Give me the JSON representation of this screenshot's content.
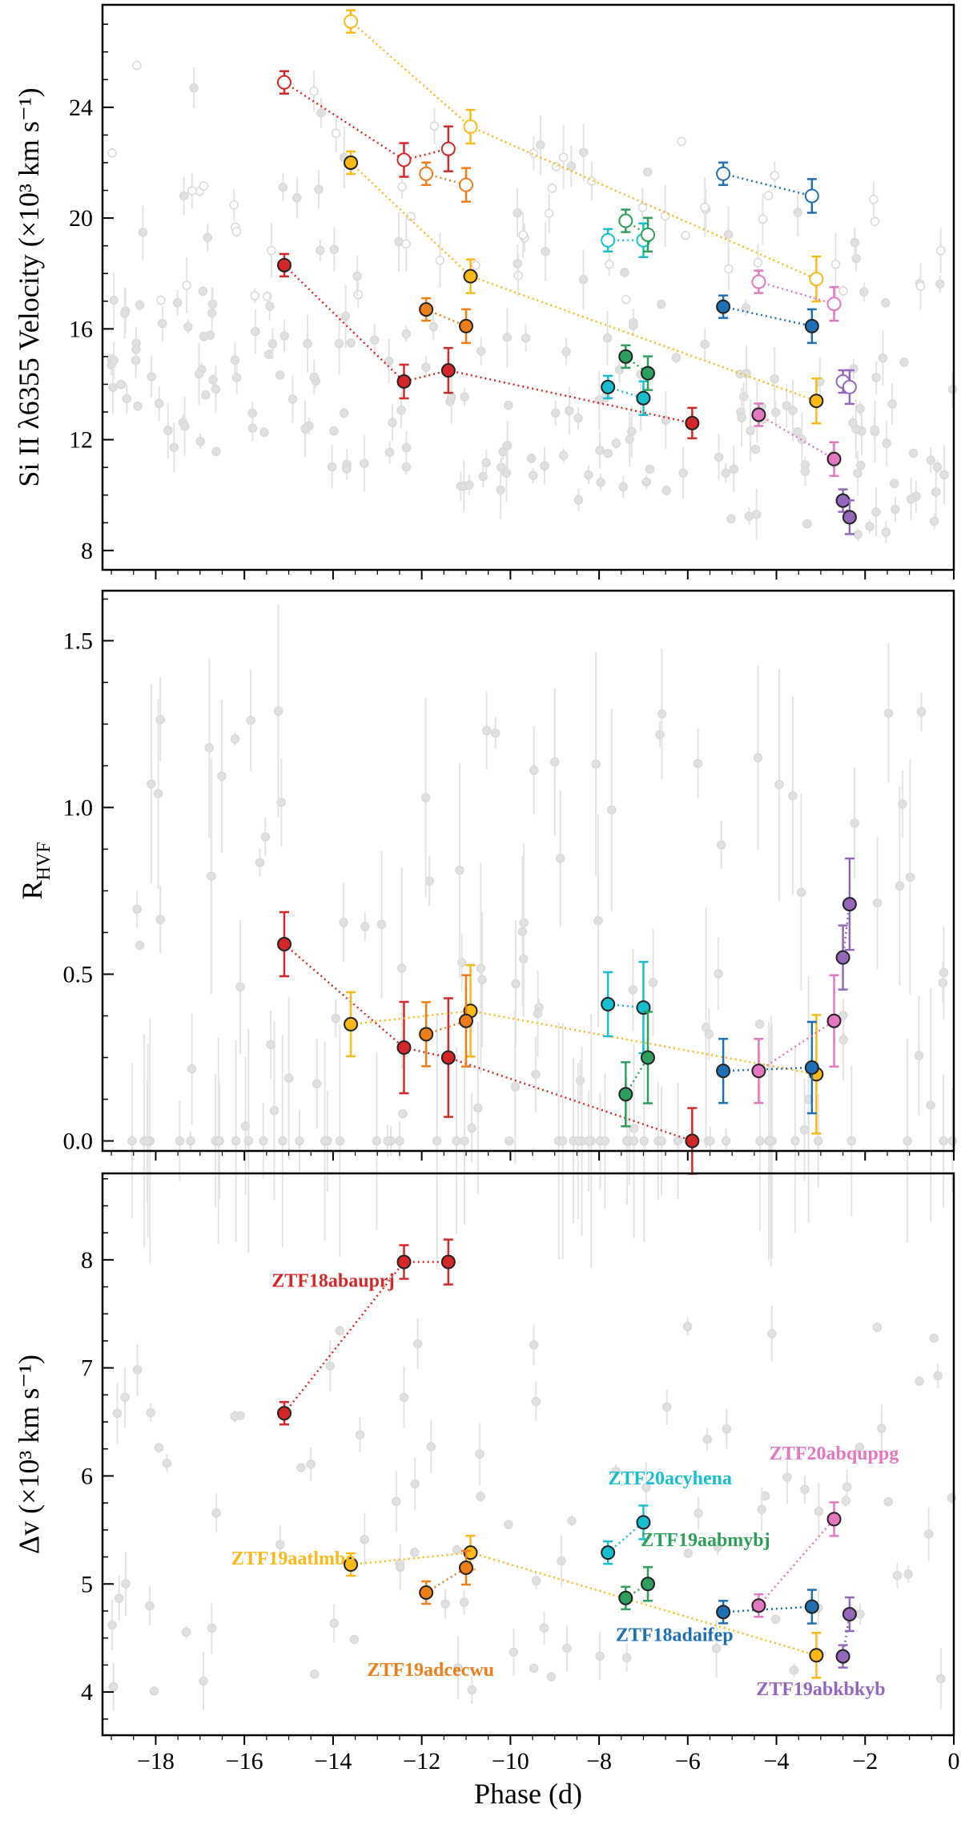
{
  "chart_data": [
    {
      "type": "scatter",
      "panel": "top",
      "ylabel": "Si II λ6355 Velocity (×10³ km s⁻¹)",
      "xlabel": "",
      "xlim": [
        -19.2,
        0
      ],
      "ylim": [
        7.3,
        27.7
      ],
      "yticks": [
        8,
        12,
        16,
        20,
        24
      ],
      "ytick_labels": [
        "8",
        "12",
        "16",
        "20",
        "24"
      ],
      "xticks": [
        -18,
        -16,
        -14,
        -12,
        -10,
        -8,
        -6,
        -4,
        -2,
        0
      ],
      "series": [
        {
          "name": "ZTF18abauprj",
          "color": "#d62728",
          "kind": "PVF",
          "points": [
            [
              -15.1,
              18.3
            ],
            [
              -12.4,
              14.1
            ],
            [
              -11.4,
              14.5
            ],
            [
              -5.9,
              12.6
            ]
          ]
        },
        {
          "name": "ZTF18abauprj",
          "color": "#d62728",
          "kind": "HVF",
          "points": [
            [
              -15.1,
              24.9
            ],
            [
              -12.4,
              22.1
            ],
            [
              -11.4,
              22.5
            ]
          ]
        },
        {
          "name": "ZTF19aatlmbo",
          "color": "#fbb917",
          "kind": "PVF",
          "points": [
            [
              -13.6,
              22.0
            ],
            [
              -10.9,
              17.9
            ],
            [
              -3.1,
              13.4
            ]
          ]
        },
        {
          "name": "ZTF19aatlmbo",
          "color": "#fbb917",
          "kind": "HVF",
          "points": [
            [
              -13.6,
              27.1
            ],
            [
              -10.9,
              23.3
            ],
            [
              -3.1,
              17.8
            ]
          ]
        },
        {
          "name": "ZTF19adcecwu",
          "color": "#ef7d18",
          "kind": "PVF",
          "points": [
            [
              -11.9,
              16.7
            ],
            [
              -11.0,
              16.1
            ]
          ]
        },
        {
          "name": "ZTF19adcecwu",
          "color": "#ef7d18",
          "kind": "HVF",
          "points": [
            [
              -11.9,
              21.6
            ],
            [
              -11.0,
              21.2
            ]
          ]
        },
        {
          "name": "ZTF20acyhena",
          "color": "#17becf",
          "kind": "PVF",
          "points": [
            [
              -7.8,
              13.9
            ],
            [
              -7.0,
              13.5
            ]
          ]
        },
        {
          "name": "ZTF20acyhena",
          "color": "#17becf",
          "kind": "HVF",
          "points": [
            [
              -7.8,
              19.2
            ],
            [
              -7.0,
              19.2
            ]
          ]
        },
        {
          "name": "ZTF19aabmybj",
          "color": "#2ca05a",
          "kind": "PVF",
          "points": [
            [
              -7.4,
              15.0
            ],
            [
              -6.9,
              14.4
            ]
          ]
        },
        {
          "name": "ZTF19aabmybj",
          "color": "#2ca05a",
          "kind": "HVF",
          "points": [
            [
              -7.4,
              19.9
            ],
            [
              -6.9,
              19.4
            ]
          ]
        },
        {
          "name": "ZTF18adaifep",
          "color": "#1f6fb4",
          "kind": "PVF",
          "points": [
            [
              -5.2,
              16.8
            ],
            [
              -3.2,
              16.1
            ]
          ]
        },
        {
          "name": "ZTF18adaifep",
          "color": "#1f6fb4",
          "kind": "HVF",
          "points": [
            [
              -5.2,
              21.6
            ],
            [
              -3.2,
              20.8
            ]
          ]
        },
        {
          "name": "ZTF20abquppg",
          "color": "#e377c2",
          "kind": "PVF",
          "points": [
            [
              -4.4,
              12.9
            ],
            [
              -2.7,
              11.3
            ]
          ]
        },
        {
          "name": "ZTF20abquppg",
          "color": "#e377c2",
          "kind": "HVF",
          "points": [
            [
              -4.4,
              17.7
            ],
            [
              -2.7,
              16.9
            ]
          ]
        },
        {
          "name": "ZTF19abkbkyb",
          "color": "#9467bd",
          "kind": "PVF",
          "points": [
            [
              -2.5,
              9.8
            ],
            [
              -2.35,
              9.2
            ]
          ]
        },
        {
          "name": "ZTF19abkbkyb",
          "color": "#9467bd",
          "kind": "HVF",
          "points": [
            [
              -2.5,
              14.1
            ],
            [
              -2.35,
              13.9
            ]
          ]
        }
      ]
    },
    {
      "type": "scatter",
      "panel": "middle",
      "ylabel": "R_HVF",
      "ylabel_main": "R",
      "ylabel_sub": "HVF",
      "xlabel": "",
      "xlim": [
        -19.2,
        0
      ],
      "ylim": [
        -0.03,
        1.65
      ],
      "yticks": [
        0.0,
        0.5,
        1.0,
        1.5
      ],
      "ytick_labels": [
        "0.0",
        "0.5",
        "1.0",
        "1.5"
      ],
      "series": [
        {
          "name": "ZTF18abauprj",
          "color": "#d62728",
          "points": [
            [
              -15.1,
              0.59
            ],
            [
              -12.4,
              0.28
            ],
            [
              -11.4,
              0.25
            ],
            [
              -5.9,
              0.0
            ]
          ]
        },
        {
          "name": "ZTF19aatlmbo",
          "color": "#fbb917",
          "points": [
            [
              -13.6,
              0.35
            ],
            [
              -10.9,
              0.39
            ],
            [
              -3.1,
              0.2
            ]
          ]
        },
        {
          "name": "ZTF19adcecwu",
          "color": "#ef7d18",
          "points": [
            [
              -11.9,
              0.32
            ],
            [
              -11.0,
              0.36
            ]
          ]
        },
        {
          "name": "ZTF20acyhena",
          "color": "#17becf",
          "points": [
            [
              -7.8,
              0.41
            ],
            [
              -7.0,
              0.4
            ]
          ]
        },
        {
          "name": "ZTF19aabmybj",
          "color": "#2ca05a",
          "points": [
            [
              -7.4,
              0.14
            ],
            [
              -6.9,
              0.25
            ]
          ]
        },
        {
          "name": "ZTF18adaifep",
          "color": "#1f6fb4",
          "points": [
            [
              -5.2,
              0.21
            ],
            [
              -3.2,
              0.22
            ]
          ]
        },
        {
          "name": "ZTF20abquppg",
          "color": "#e377c2",
          "points": [
            [
              -4.4,
              0.21
            ],
            [
              -2.7,
              0.36
            ]
          ]
        },
        {
          "name": "ZTF19abkbkyb",
          "color": "#9467bd",
          "points": [
            [
              -2.5,
              0.55
            ],
            [
              -2.35,
              0.71
            ]
          ]
        }
      ]
    },
    {
      "type": "scatter",
      "panel": "bottom",
      "ylabel": "Δv (×10³ km s⁻¹)",
      "xlabel": "Phase (d)",
      "xlim": [
        -19.2,
        0
      ],
      "ylim": [
        3.6,
        8.8
      ],
      "yticks": [
        4,
        5,
        6,
        7,
        8
      ],
      "ytick_labels": [
        "4",
        "5",
        "6",
        "7",
        "8"
      ],
      "xticks": [
        -18,
        -16,
        -14,
        -12,
        -10,
        -8,
        -6,
        -4,
        -2,
        0
      ],
      "xtick_labels": [
        "−18",
        "−16",
        "−14",
        "−12",
        "−10",
        "−8",
        "−6",
        "−4",
        "−2",
        "0"
      ],
      "series": [
        {
          "name": "ZTF18abauprj",
          "color": "#d62728",
          "label_text": "ZTF18abauprj",
          "points": [
            [
              -15.1,
              6.58
            ],
            [
              -12.4,
              7.98
            ],
            [
              -11.4,
              7.98
            ]
          ]
        },
        {
          "name": "ZTF19aatlmbo",
          "color": "#fbb917",
          "label_text": "ZTF19aatlmbo",
          "points": [
            [
              -13.6,
              5.18
            ],
            [
              -10.9,
              5.29
            ],
            [
              -3.1,
              4.34
            ]
          ]
        },
        {
          "name": "ZTF19adcecwu",
          "color": "#ef7d18",
          "label_text": "ZTF19adcecwu",
          "points": [
            [
              -11.9,
              4.92
            ],
            [
              -11.0,
              5.15
            ]
          ]
        },
        {
          "name": "ZTF20acyhena",
          "color": "#17becf",
          "label_text": "ZTF20acyhena",
          "points": [
            [
              -7.8,
              5.29
            ],
            [
              -7.0,
              5.57
            ]
          ]
        },
        {
          "name": "ZTF19aabmybj",
          "color": "#2ca05a",
          "label_text": "ZTF19aabmybj",
          "points": [
            [
              -7.4,
              4.87
            ],
            [
              -6.9,
              5.0
            ]
          ]
        },
        {
          "name": "ZTF18adaifep",
          "color": "#1f6fb4",
          "label_text": "ZTF18adaifep",
          "points": [
            [
              -5.2,
              4.74
            ],
            [
              -3.2,
              4.79
            ]
          ]
        },
        {
          "name": "ZTF20abquppg",
          "color": "#e377c2",
          "label_text": "ZTF20abquppg",
          "points": [
            [
              -4.4,
              4.8
            ],
            [
              -2.7,
              5.6
            ]
          ]
        },
        {
          "name": "ZTF19abkbkyb",
          "color": "#9467bd",
          "label_text": "ZTF19abkbkyb",
          "points": [
            [
              -2.5,
              4.33
            ],
            [
              -2.35,
              4.72
            ]
          ]
        }
      ]
    }
  ]
}
